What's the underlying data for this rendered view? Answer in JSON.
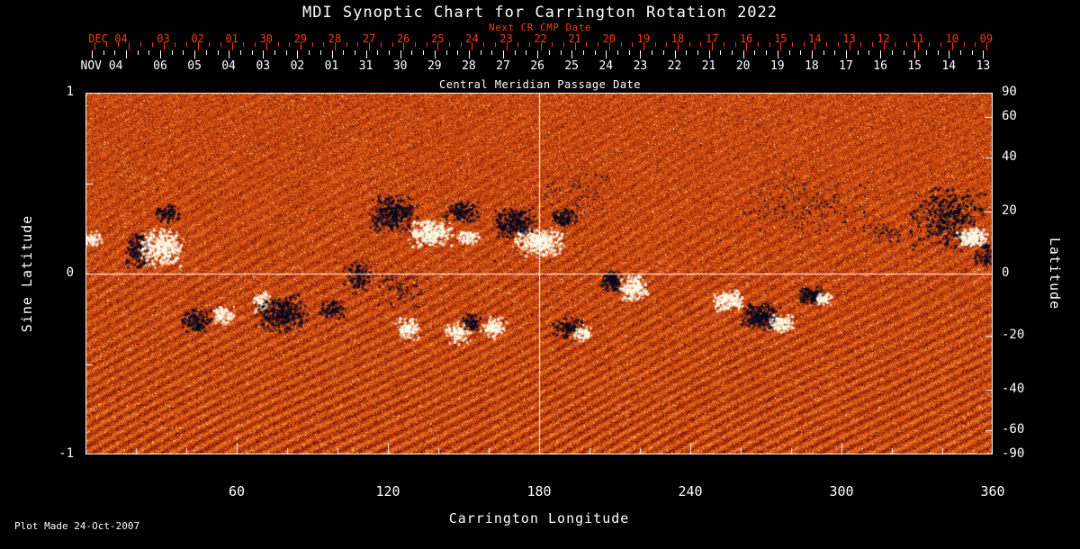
{
  "colors": {
    "background": "#000000",
    "text": "#ffffff",
    "accent_red": "#ff3b00",
    "frame": "#ffffff",
    "negative_polarity": "#08081f",
    "positive_polarity": "#fffbe8"
  },
  "title": "MDI Synoptic Chart for Carrington Rotation 2022",
  "top_axis": {
    "next_cr_label": "Next CR CMP Date",
    "next_cr_month": "DEC 04",
    "next_cr_days": [
      "03",
      "02",
      "01",
      "30",
      "29",
      "28",
      "27",
      "26",
      "25",
      "24",
      "23",
      "22",
      "21",
      "20",
      "19",
      "18",
      "17",
      "16",
      "15",
      "14",
      "13",
      "12",
      "11",
      "10",
      "09"
    ],
    "cmp_month": "NOV 04",
    "cmp_days": [
      "06",
      "05",
      "04",
      "03",
      "02",
      "01",
      "31",
      "30",
      "29",
      "28",
      "27",
      "26",
      "25",
      "24",
      "23",
      "22",
      "21",
      "20",
      "19",
      "18",
      "17",
      "16",
      "15",
      "14",
      "13"
    ],
    "axis_label": "Central Meridian Passage Date"
  },
  "left_axis": {
    "label": "Sine Latitude",
    "ticks": [
      "1",
      "0",
      "-1"
    ]
  },
  "right_axis": {
    "label": "Latitude",
    "ticks": [
      "90",
      "60",
      "40",
      "20",
      "0",
      "-20",
      "-40",
      "-60",
      "-90"
    ]
  },
  "bottom_axis": {
    "label": "Carrington Longitude",
    "ticks": [
      "60",
      "120",
      "180",
      "240",
      "300",
      "360"
    ]
  },
  "footer": {
    "plot_made": "Plot Made 24-Oct-2007"
  },
  "chart_data": {
    "type": "heatmap",
    "title": "MDI Synoptic Chart for Carrington Rotation 2022",
    "xlabel": "Carrington Longitude",
    "ylabel": "Sine Latitude",
    "ylabel_right": "Latitude",
    "x_range": [
      0,
      360
    ],
    "y_range": [
      -1,
      1
    ],
    "x_ticks": [
      60,
      120,
      180,
      240,
      300,
      360
    ],
    "x_minor_tick_step": 20,
    "y_ticks_sine": [
      1,
      0,
      -1
    ],
    "y_ticks_latitude": [
      90,
      60,
      40,
      20,
      0,
      -20,
      -40,
      -60,
      -90
    ],
    "crosshair": {
      "longitude": 180,
      "sine_latitude": 0
    },
    "colormap": "solar magnetogram: quiet sun dark-red/orange/cream noise; negative polarity dark navy-black; positive polarity white-cream",
    "active_regions": [
      {
        "lon": 3,
        "slat": 0.19,
        "rx": 3,
        "ry": 0.035,
        "n": 70,
        "pol": "pos"
      },
      {
        "lon": 21,
        "slat": 0.13,
        "rx": 4,
        "ry": 0.09,
        "n": 160,
        "pol": "neg"
      },
      {
        "lon": 30,
        "slat": 0.14,
        "rx": 7,
        "ry": 0.085,
        "n": 420,
        "pol": "pos"
      },
      {
        "lon": 33,
        "slat": 0.33,
        "rx": 4,
        "ry": 0.045,
        "n": 90,
        "pol": "neg"
      },
      {
        "lon": 44,
        "slat": -0.26,
        "rx": 5,
        "ry": 0.06,
        "n": 160,
        "pol": "neg"
      },
      {
        "lon": 55,
        "slat": -0.23,
        "rx": 3.5,
        "ry": 0.045,
        "n": 110,
        "pol": "pos"
      },
      {
        "lon": 70,
        "slat": -0.16,
        "rx": 3,
        "ry": 0.05,
        "n": 90,
        "pol": "pos"
      },
      {
        "lon": 78,
        "slat": -0.22,
        "rx": 8,
        "ry": 0.08,
        "n": 380,
        "pol": "neg"
      },
      {
        "lon": 98,
        "slat": -0.2,
        "rx": 4,
        "ry": 0.04,
        "n": 100,
        "pol": "neg"
      },
      {
        "lon": 108,
        "slat": -0.02,
        "rx": 4,
        "ry": 0.07,
        "n": 130,
        "pol": "neg"
      },
      {
        "lon": 122,
        "slat": 0.33,
        "rx": 8,
        "ry": 0.09,
        "n": 380,
        "pol": "neg"
      },
      {
        "lon": 137,
        "slat": 0.22,
        "rx": 7,
        "ry": 0.06,
        "n": 340,
        "pol": "pos"
      },
      {
        "lon": 150,
        "slat": 0.34,
        "rx": 6,
        "ry": 0.05,
        "n": 170,
        "pol": "neg"
      },
      {
        "lon": 152,
        "slat": 0.2,
        "rx": 4,
        "ry": 0.03,
        "n": 100,
        "pol": "pos"
      },
      {
        "lon": 170,
        "slat": 0.28,
        "rx": 7,
        "ry": 0.07,
        "n": 300,
        "pol": "neg"
      },
      {
        "lon": 180,
        "slat": 0.17,
        "rx": 8,
        "ry": 0.06,
        "n": 400,
        "pol": "pos"
      },
      {
        "lon": 190,
        "slat": 0.31,
        "rx": 4,
        "ry": 0.04,
        "n": 110,
        "pol": "neg"
      },
      {
        "lon": 125,
        "slat": -0.08,
        "rx": 8,
        "ry": 0.08,
        "n": 130,
        "pol": "neg",
        "dot": 0.9
      },
      {
        "lon": 128,
        "slat": -0.31,
        "rx": 4,
        "ry": 0.05,
        "n": 120,
        "pol": "pos"
      },
      {
        "lon": 148,
        "slat": -0.33,
        "rx": 4,
        "ry": 0.05,
        "n": 120,
        "pol": "pos"
      },
      {
        "lon": 153,
        "slat": -0.27,
        "rx": 3,
        "ry": 0.04,
        "n": 80,
        "pol": "neg"
      },
      {
        "lon": 162,
        "slat": -0.3,
        "rx": 4,
        "ry": 0.05,
        "n": 130,
        "pol": "pos"
      },
      {
        "lon": 192,
        "slat": -0.3,
        "rx": 5,
        "ry": 0.05,
        "n": 110,
        "pol": "neg"
      },
      {
        "lon": 197,
        "slat": -0.33,
        "rx": 3,
        "ry": 0.04,
        "n": 80,
        "pol": "pos"
      },
      {
        "lon": 209,
        "slat": -0.04,
        "rx": 3.5,
        "ry": 0.05,
        "n": 150,
        "pol": "neg"
      },
      {
        "lon": 218,
        "slat": -0.08,
        "rx": 4.5,
        "ry": 0.06,
        "n": 220,
        "pol": "pos"
      },
      {
        "lon": 195,
        "slat": 0.45,
        "rx": 12,
        "ry": 0.12,
        "n": 110,
        "pol": "neg",
        "dot": 0.8
      },
      {
        "lon": 255,
        "slat": -0.15,
        "rx": 5,
        "ry": 0.045,
        "n": 170,
        "pol": "pos"
      },
      {
        "lon": 268,
        "slat": -0.24,
        "rx": 6,
        "ry": 0.06,
        "n": 260,
        "pol": "neg"
      },
      {
        "lon": 276,
        "slat": -0.28,
        "rx": 4,
        "ry": 0.04,
        "n": 120,
        "pol": "pos"
      },
      {
        "lon": 288,
        "slat": -0.12,
        "rx": 4,
        "ry": 0.04,
        "n": 130,
        "pol": "neg"
      },
      {
        "lon": 293,
        "slat": -0.14,
        "rx": 2.5,
        "ry": 0.03,
        "n": 70,
        "pol": "pos"
      },
      {
        "lon": 285,
        "slat": 0.38,
        "rx": 25,
        "ry": 0.14,
        "n": 280,
        "pol": "neg",
        "dot": 0.8
      },
      {
        "lon": 342,
        "slat": 0.3,
        "rx": 12,
        "ry": 0.14,
        "n": 500,
        "pol": "neg"
      },
      {
        "lon": 352,
        "slat": 0.2,
        "rx": 5,
        "ry": 0.04,
        "n": 220,
        "pol": "pos"
      },
      {
        "lon": 318,
        "slat": 0.22,
        "rx": 6,
        "ry": 0.05,
        "n": 90,
        "pol": "neg",
        "dot": 0.8
      },
      {
        "lon": 358,
        "slat": 0.1,
        "rx": 4,
        "ry": 0.06,
        "n": 100,
        "pol": "neg"
      }
    ]
  }
}
